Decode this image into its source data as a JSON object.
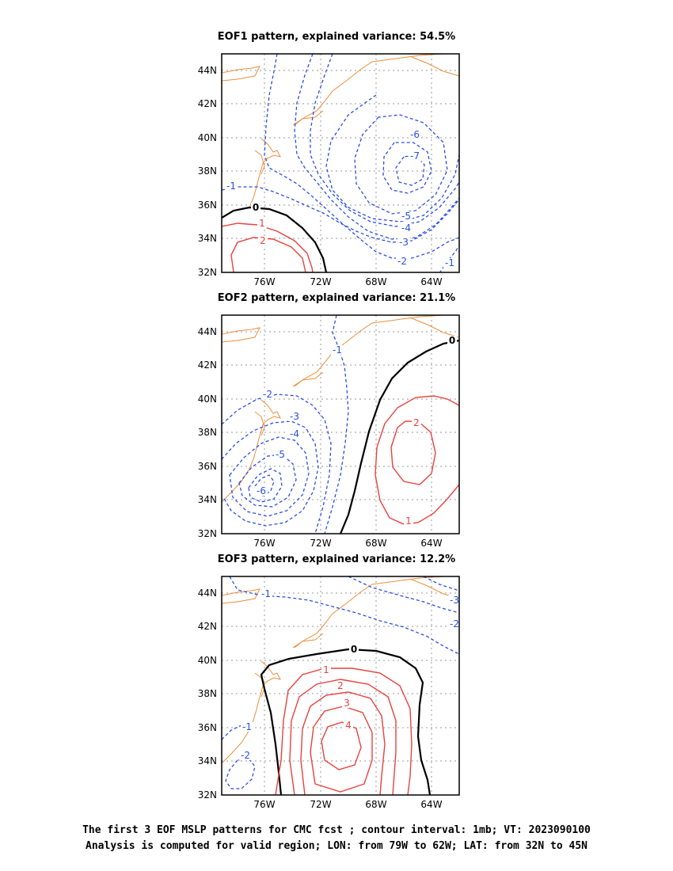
{
  "chart_data": [
    {
      "type": "contour",
      "title": "EOF1 pattern, explained variance: 54.5%",
      "x_ticks": [
        "76W",
        "72W",
        "68W",
        "64W"
      ],
      "y_ticks": [
        "44N",
        "42N",
        "40N",
        "38N",
        "36N",
        "34N",
        "32N"
      ],
      "xlim": [
        -79,
        -62
      ],
      "ylim": [
        32,
        45
      ],
      "grid": true,
      "contour_labels": [
        "-7",
        "-6",
        "-5",
        "-4",
        "-3",
        "-2",
        "-1",
        "-1",
        "0",
        "1",
        "2"
      ]
    },
    {
      "type": "contour",
      "title": "EOF2 pattern, explained variance: 21.1%",
      "x_ticks": [
        "76W",
        "72W",
        "68W",
        "64W"
      ],
      "y_ticks": [
        "44N",
        "42N",
        "40N",
        "38N",
        "36N",
        "34N",
        "32N"
      ],
      "xlim": [
        -79,
        -62
      ],
      "ylim": [
        32,
        45
      ],
      "grid": true,
      "contour_labels": [
        "-6",
        "-5",
        "-4",
        "-3",
        "-2",
        "-1",
        "0",
        "1",
        "2"
      ]
    },
    {
      "type": "contour",
      "title": "EOF3 pattern, explained variance: 12.2%",
      "x_ticks": [
        "76W",
        "72W",
        "68W",
        "64W"
      ],
      "y_ticks": [
        "44N",
        "42N",
        "40N",
        "38N",
        "36N",
        "34N",
        "32N"
      ],
      "xlim": [
        -79,
        -62
      ],
      "ylim": [
        32,
        45
      ],
      "grid": true,
      "contour_labels": [
        "-3",
        "-2",
        "-1",
        "-1",
        "-2",
        "0",
        "1",
        "2",
        "3",
        "4"
      ]
    }
  ],
  "footer": {
    "line1": "The first 3 EOF MSLP patterns for CMC fcst ; contour interval: 1mb; VT: 2023090100",
    "line2": "Analysis is computed for valid region; LON: from 79W to 62W; LAT: from 32N to 45N"
  },
  "colors": {
    "negative": "#2a4fe8",
    "positive": "#e8423e",
    "zero": "#000000",
    "coast": "#ee8f3c",
    "grid": "#9a9a9a"
  }
}
